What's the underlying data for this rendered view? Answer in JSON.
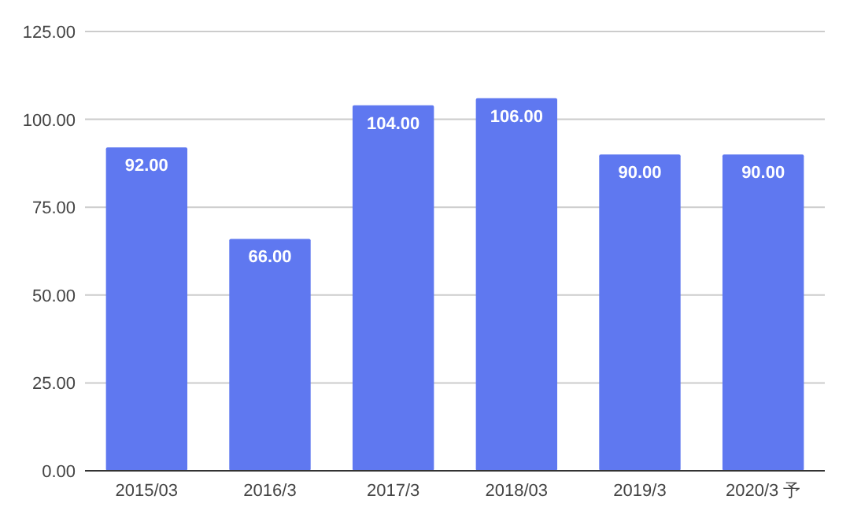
{
  "chart_data": {
    "type": "bar",
    "categories": [
      "2015/03",
      "2016/3",
      "2017/3",
      "2018/03",
      "2019/3",
      "2020/3 予"
    ],
    "values": [
      92,
      66,
      104,
      106,
      90,
      90
    ],
    "color": "#5f78f0",
    "value_labels": [
      "92.00",
      "66.00",
      "104.00",
      "106.00",
      "90.00",
      "90.00"
    ],
    "ylim": [
      0,
      125
    ],
    "yticks": [
      {
        "value": 0,
        "label": "0.00"
      },
      {
        "value": 25,
        "label": "25.00"
      },
      {
        "value": 50,
        "label": "50.00"
      },
      {
        "value": 75,
        "label": "75.00"
      },
      {
        "value": 100,
        "label": "100.00"
      },
      {
        "value": 125,
        "label": "125.00"
      }
    ],
    "grid": "y"
  }
}
